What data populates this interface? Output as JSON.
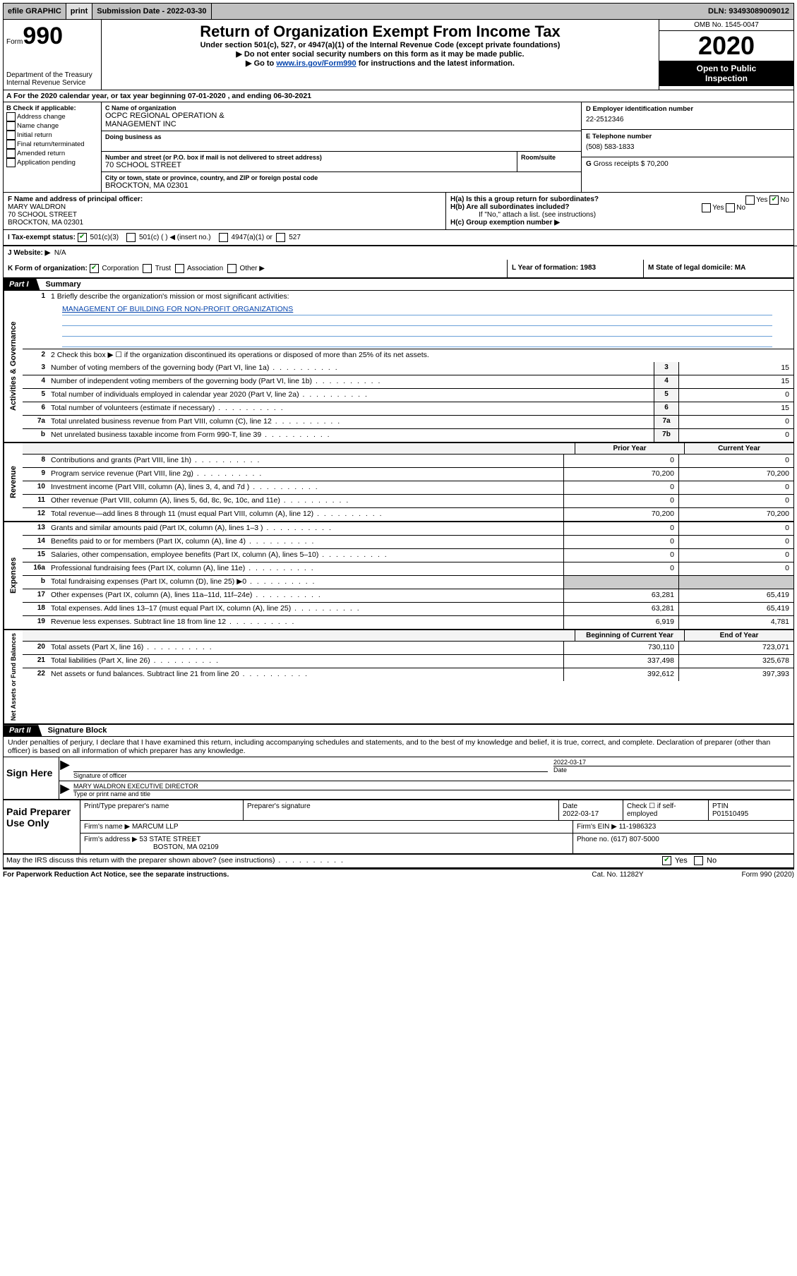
{
  "topbar": {
    "efile_label": "efile GRAPHIC",
    "print_btn": "print",
    "submission_label": "Submission Date - 2022-03-30",
    "dln": "DLN: 93493089009012"
  },
  "header": {
    "form_word": "Form",
    "form_num": "990",
    "dept1": "Department of the Treasury",
    "dept2": "Internal Revenue Service",
    "title": "Return of Organization Exempt From Income Tax",
    "subtitle": "Under section 501(c), 527, or 4947(a)(1) of the Internal Revenue Code (except private foundations)",
    "line2": "▶ Do not enter social security numbers on this form as it may be made public.",
    "line3a": "▶ Go to ",
    "line3_link": "www.irs.gov/Form990",
    "line3b": " for instructions and the latest information.",
    "omb": "OMB No. 1545-0047",
    "year": "2020",
    "open1": "Open to Public",
    "open2": "Inspection"
  },
  "rowA": "A   For the 2020 calendar year, or tax year beginning 07-01-2020    , and ending 06-30-2021",
  "B": {
    "hdr": "B Check if applicable:",
    "items": [
      "Address change",
      "Name change",
      "Initial return",
      "Final return/terminated",
      "Amended return",
      "Application pending"
    ]
  },
  "C": {
    "name_lab": "C Name of organization",
    "name1": "OCPC REGIONAL OPERATION &",
    "name2": "MANAGEMENT INC",
    "dba_lab": "Doing business as",
    "addr_lab": "Number and street (or P.O. box if mail is not delivered to street address)",
    "room_lab": "Room/suite",
    "addr": "70 SCHOOL STREET",
    "city_lab": "City or town, state or province, country, and ZIP or foreign postal code",
    "city": "BROCKTON, MA  02301"
  },
  "D": {
    "lab": "D Employer identification number",
    "val": "22-2512346"
  },
  "E": {
    "lab": "E Telephone number",
    "val": "(508) 583-1833"
  },
  "G": {
    "lab": "G",
    "text": "Gross receipts $ 70,200"
  },
  "F": {
    "lab": "F  Name and address of principal officer:",
    "l1": "MARY WALDRON",
    "l2": "70 SCHOOL STREET",
    "l3": "BROCKTON, MA  02301"
  },
  "H": {
    "ha": "H(a)  Is this a group return for subordinates?",
    "hb": "H(b)  Are all subordinates included?",
    "hb2": "If \"No,\" attach a list. (see instructions)",
    "hc": "H(c)  Group exemption number ▶",
    "yes": "Yes",
    "no": "No"
  },
  "I": {
    "lab": "I    Tax-exempt status:",
    "o1": "501(c)(3)",
    "o2": "501(c) (  ) ◀ (insert no.)",
    "o3": "4947(a)(1) or",
    "o4": "527"
  },
  "J": {
    "lab": "J    Website: ▶",
    "val": "N/A"
  },
  "K": {
    "lab": "K Form of organization:",
    "o1": "Corporation",
    "o2": "Trust",
    "o3": "Association",
    "o4": "Other ▶"
  },
  "L": {
    "lab": "L Year of formation: 1983"
  },
  "M": {
    "lab": "M State of legal domicile: MA"
  },
  "part1": {
    "tab": "Part I",
    "title": "Summary"
  },
  "summary": {
    "s1_lab": "Activities & Governance",
    "q1": "1   Briefly describe the organization's mission or most significant activities:",
    "q1_val": "MANAGEMENT OF BUILDING FOR NON-PROFIT ORGANIZATIONS",
    "q2": "2    Check this box ▶ ☐  if the organization discontinued its operations or disposed of more than 25% of its net assets.",
    "rows_ag": [
      {
        "n": "3",
        "t": "Number of voting members of the governing body (Part VI, line 1a)",
        "bn": "3",
        "bv": "15"
      },
      {
        "n": "4",
        "t": "Number of independent voting members of the governing body (Part VI, line 1b)",
        "bn": "4",
        "bv": "15"
      },
      {
        "n": "5",
        "t": "Total number of individuals employed in calendar year 2020 (Part V, line 2a)",
        "bn": "5",
        "bv": "0"
      },
      {
        "n": "6",
        "t": "Total number of volunteers (estimate if necessary)",
        "bn": "6",
        "bv": "15"
      },
      {
        "n": "7a",
        "t": "Total unrelated business revenue from Part VIII, column (C), line 12",
        "bn": "7a",
        "bv": "0"
      },
      {
        "n": "b",
        "t": "Net unrelated business taxable income from Form 990-T, line 39",
        "bn": "7b",
        "bv": "0"
      }
    ],
    "s2_lab": "Revenue",
    "prior": "Prior Year",
    "current": "Current Year",
    "rows_rev": [
      {
        "n": "8",
        "t": "Contributions and grants (Part VIII, line 1h)",
        "p": "0",
        "c": "0"
      },
      {
        "n": "9",
        "t": "Program service revenue (Part VIII, line 2g)",
        "p": "70,200",
        "c": "70,200"
      },
      {
        "n": "10",
        "t": "Investment income (Part VIII, column (A), lines 3, 4, and 7d )",
        "p": "0",
        "c": "0"
      },
      {
        "n": "11",
        "t": "Other revenue (Part VIII, column (A), lines 5, 6d, 8c, 9c, 10c, and 11e)",
        "p": "0",
        "c": "0"
      },
      {
        "n": "12",
        "t": "Total revenue—add lines 8 through 11 (must equal Part VIII, column (A), line 12)",
        "p": "70,200",
        "c": "70,200"
      }
    ],
    "s3_lab": "Expenses",
    "rows_exp": [
      {
        "n": "13",
        "t": "Grants and similar amounts paid (Part IX, column (A), lines 1–3 )",
        "p": "0",
        "c": "0"
      },
      {
        "n": "14",
        "t": "Benefits paid to or for members (Part IX, column (A), line 4)",
        "p": "0",
        "c": "0"
      },
      {
        "n": "15",
        "t": "Salaries, other compensation, employee benefits (Part IX, column (A), lines 5–10)",
        "p": "0",
        "c": "0"
      },
      {
        "n": "16a",
        "t": "Professional fundraising fees (Part IX, column (A), line 11e)",
        "p": "0",
        "c": "0"
      },
      {
        "n": "b",
        "t": "Total fundraising expenses (Part IX, column (D), line 25) ▶0",
        "p": "",
        "c": ""
      },
      {
        "n": "17",
        "t": "Other expenses (Part IX, column (A), lines 11a–11d, 11f–24e)",
        "p": "63,281",
        "c": "65,419"
      },
      {
        "n": "18",
        "t": "Total expenses. Add lines 13–17 (must equal Part IX, column (A), line 25)",
        "p": "63,281",
        "c": "65,419"
      },
      {
        "n": "19",
        "t": "Revenue less expenses. Subtract line 18 from line 12",
        "p": "6,919",
        "c": "4,781"
      }
    ],
    "s4_lab": "Net Assets or Fund Balances",
    "begin": "Beginning of Current Year",
    "end": "End of Year",
    "rows_na": [
      {
        "n": "20",
        "t": "Total assets (Part X, line 16)",
        "p": "730,110",
        "c": "723,071"
      },
      {
        "n": "21",
        "t": "Total liabilities (Part X, line 26)",
        "p": "337,498",
        "c": "325,678"
      },
      {
        "n": "22",
        "t": "Net assets or fund balances. Subtract line 21 from line 20",
        "p": "392,612",
        "c": "397,393"
      }
    ]
  },
  "part2": {
    "tab": "Part II",
    "title": "Signature Block"
  },
  "sig": {
    "decl": "Under penalties of perjury, I declare that I have examined this return, including accompanying schedules and statements, and to the best of my knowledge and belief, it is true, correct, and complete. Declaration of preparer (other than officer) is based on all information of which preparer has any knowledge.",
    "sign_here": "Sign Here",
    "sig_officer_lab": "Signature of officer",
    "date_lab": "Date",
    "date_val": "2022-03-17",
    "name_title": "MARY WALDRON  EXECUTIVE DIRECTOR",
    "name_title_lab": "Type or print name and title"
  },
  "paid": {
    "left": "Paid Preparer Use Only",
    "h1": "Print/Type preparer's name",
    "h2": "Preparer's signature",
    "h3": "Date",
    "h3v": "2022-03-17",
    "h4": "Check ☐ if self-employed",
    "h5": "PTIN",
    "h5v": "P01510495",
    "firm_name_lab": "Firm's name    ▶",
    "firm_name": "MARCUM LLP",
    "firm_ein_lab": "Firm's EIN ▶",
    "firm_ein": "11-1986323",
    "firm_addr_lab": "Firm's address ▶",
    "firm_addr1": "53 STATE STREET",
    "firm_addr2": "BOSTON, MA  02109",
    "phone_lab": "Phone no.",
    "phone": "(617) 807-5000"
  },
  "discuss": {
    "q": "May the IRS discuss this return with the preparer shown above? (see instructions)",
    "yes": "Yes",
    "no": "No"
  },
  "footer": {
    "l": "For Paperwork Reduction Act Notice, see the separate instructions.",
    "m": "Cat. No. 11282Y",
    "r": "Form 990 (2020)"
  }
}
